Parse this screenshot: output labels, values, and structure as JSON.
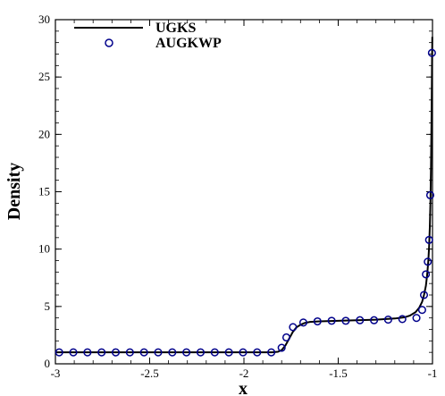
{
  "chart_data": {
    "type": "line",
    "xlabel": "x",
    "ylabel": "Density",
    "xlim": [
      -3,
      -1
    ],
    "ylim": [
      0,
      30
    ],
    "xticks": [
      -3,
      -2.5,
      -2,
      -1.5,
      -1
    ],
    "xtick_labels": [
      "-3",
      "-2.5",
      "-2",
      "-1.5",
      "-1"
    ],
    "yticks": [
      0,
      5,
      10,
      15,
      20,
      25,
      30
    ],
    "ytick_labels": [
      "0",
      "5",
      "10",
      "15",
      "20",
      "25",
      "30"
    ],
    "grid": false,
    "legend_position": "top-left",
    "series": [
      {
        "name": "UGKS",
        "style": "line",
        "color": "#000000",
        "x": [
          -3.0,
          -2.5,
          -2.0,
          -1.85,
          -1.82,
          -1.8,
          -1.78,
          -1.76,
          -1.74,
          -1.72,
          -1.7,
          -1.68,
          -1.65,
          -1.6,
          -1.5,
          -1.4,
          -1.3,
          -1.2,
          -1.15,
          -1.12,
          -1.09,
          -1.07,
          -1.055,
          -1.045,
          -1.035,
          -1.028,
          -1.022,
          -1.018,
          -1.014,
          -1.011,
          -1.008,
          -1.006,
          -1.004,
          -1.0025,
          -1.001
        ],
        "y": [
          1.0,
          1.0,
          1.0,
          1.0,
          1.05,
          1.2,
          1.6,
          2.2,
          2.8,
          3.2,
          3.4,
          3.55,
          3.65,
          3.7,
          3.75,
          3.8,
          3.85,
          3.95,
          4.05,
          4.2,
          4.5,
          4.9,
          5.4,
          6.0,
          6.8,
          7.8,
          9.0,
          10.2,
          12.0,
          14.0,
          17.0,
          20.0,
          23.0,
          26.0,
          28.5
        ]
      },
      {
        "name": "AUGKWP",
        "style": "markers",
        "marker": "circle",
        "color": "#00008b",
        "x": [
          -2.98,
          -2.905,
          -2.83,
          -2.755,
          -2.68,
          -2.605,
          -2.53,
          -2.455,
          -2.38,
          -2.305,
          -2.23,
          -2.155,
          -2.08,
          -2.005,
          -1.93,
          -1.855,
          -1.8,
          -1.775,
          -1.74,
          -1.685,
          -1.61,
          -1.535,
          -1.46,
          -1.385,
          -1.31,
          -1.235,
          -1.16,
          -1.085,
          -1.055,
          -1.045,
          -1.035,
          -1.025,
          -1.018,
          -1.012
        ],
        "y": [
          1.0,
          1.0,
          1.0,
          1.0,
          1.0,
          1.0,
          1.0,
          1.0,
          1.0,
          1.0,
          1.0,
          1.0,
          1.0,
          1.0,
          1.0,
          1.0,
          1.4,
          2.3,
          3.2,
          3.6,
          3.7,
          3.75,
          3.75,
          3.8,
          3.8,
          3.85,
          3.9,
          4.0,
          4.7,
          6.0,
          7.8,
          8.9,
          10.8,
          14.7
        ]
      },
      {
        "name": "",
        "style": "markers-extra",
        "marker": "circle",
        "color": "#00008b",
        "x": [
          -1.003
        ],
        "y": [
          27.1
        ]
      }
    ]
  }
}
